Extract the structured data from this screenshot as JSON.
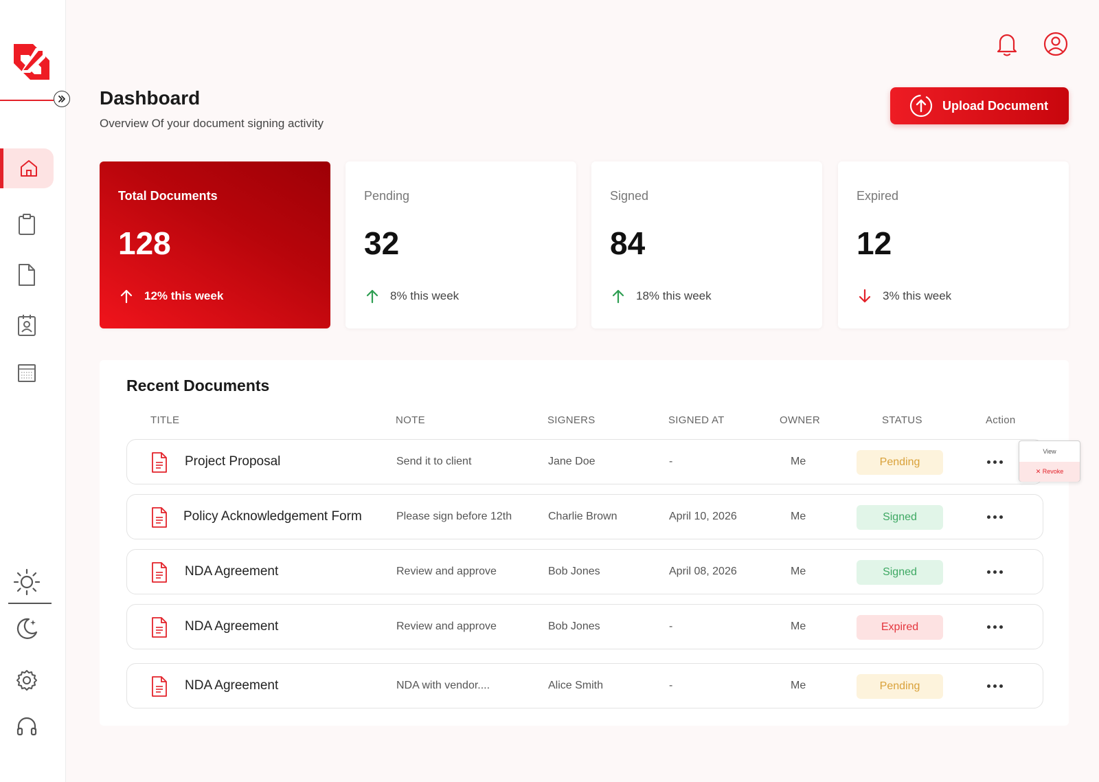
{
  "sidebar": {
    "logo_icon": "brand-logo-icon",
    "collapse_icon": "chevrons-right-icon",
    "nav_items": [
      {
        "icon": "home-icon",
        "active": true
      },
      {
        "icon": "clipboard-icon",
        "active": false
      },
      {
        "icon": "document-icon",
        "active": false
      },
      {
        "icon": "contact-badge-icon",
        "active": false
      },
      {
        "icon": "grid-template-icon",
        "active": false
      }
    ],
    "bottom_items": [
      "sun-icon",
      "moon-icon",
      "gear-icon",
      "headset-icon"
    ]
  },
  "header": {
    "title": "Dashboard",
    "subtitle": "Overview Of your document signing activity",
    "upload_label": "Upload Document",
    "icons": [
      "bell-icon",
      "user-avatar-icon"
    ]
  },
  "stats": [
    {
      "label": "Total Documents",
      "value": "128",
      "trend": "12% this week",
      "direction": "up"
    },
    {
      "label": "Pending",
      "value": "32",
      "trend": "8% this week",
      "direction": "up"
    },
    {
      "label": "Signed",
      "value": "84",
      "trend": "18% this week",
      "direction": "up"
    },
    {
      "label": "Expired",
      "value": "12",
      "trend": "3% this week",
      "direction": "down"
    }
  ],
  "recent": {
    "title": "Recent Documents",
    "columns": [
      "TITLE",
      "NOTE",
      "SIGNERS",
      "SIGNED AT",
      "OWNER",
      "STATUS",
      "Action"
    ],
    "rows": [
      {
        "title": "Project Proposal",
        "note": "Send it to client",
        "signers": "Jane Doe",
        "signed_at": "-",
        "owner": "Me",
        "status": "Pending"
      },
      {
        "title": "Policy Acknowledgement Form",
        "note": "Please sign before 12th",
        "signers": "Charlie Brown",
        "signed_at": "April 10, 2026",
        "owner": "Me",
        "status": "Signed"
      },
      {
        "title": "NDA Agreement",
        "note": "Review and approve",
        "signers": "Bob Jones",
        "signed_at": "April 08, 2026",
        "owner": "Me",
        "status": "Signed"
      },
      {
        "title": "NDA Agreement",
        "note": "Review and approve",
        "signers": "Bob Jones",
        "signed_at": "-",
        "owner": "Me",
        "status": "Expired"
      },
      {
        "title": "NDA Agreement",
        "note": "NDA  with vendor....",
        "signers": "Alice Smith",
        "signed_at": "-",
        "owner": "Me",
        "status": "Pending"
      }
    ]
  },
  "row_menu": {
    "view_label": "View",
    "revoke_label": "✕ Revoke"
  },
  "colors": {
    "accent": "#e3222a",
    "pending": "#d9a13a",
    "signed": "#3ea863",
    "expired": "#e4363d"
  }
}
